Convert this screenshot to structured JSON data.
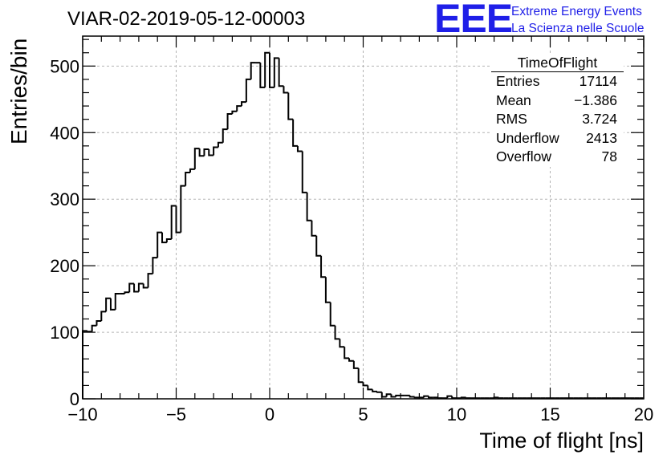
{
  "header": {
    "title": "VIAR-02-2019-05-12-00003",
    "logo": "EEE",
    "logo_line1": "Extreme Energy Events",
    "logo_line2": "La Scienza nelle Scuole"
  },
  "stats_box": {
    "title": "TimeOfFlight",
    "rows": [
      {
        "label": "Entries",
        "value": "17114"
      },
      {
        "label": "Mean",
        "value": "−1.386"
      },
      {
        "label": "RMS",
        "value": "3.724"
      },
      {
        "label": "Underflow",
        "value": "2413"
      },
      {
        "label": "Overflow",
        "value": "78"
      }
    ]
  },
  "colors": {
    "logo": "#1f1fe8",
    "line": "#000000",
    "grid": "#b3b3b3"
  },
  "chart_data": {
    "type": "histogram",
    "title": "VIAR-02-2019-05-12-00003",
    "xlabel": "Time of flight [ns]",
    "ylabel": "Entries/bin",
    "xlim": [
      -10,
      20
    ],
    "ylim": [
      0,
      545
    ],
    "grid": true,
    "bin_width": 0.25,
    "bin_start": -10,
    "xticks": [
      -10,
      -5,
      0,
      5,
      10,
      15,
      20
    ],
    "xtick_labels": [
      "−10",
      "−5",
      "0",
      "5",
      "10",
      "15",
      "20"
    ],
    "yticks": [
      0,
      100,
      200,
      300,
      400,
      500
    ],
    "ytick_labels": [
      "0",
      "100",
      "200",
      "300",
      "400",
      "500"
    ],
    "values": [
      102,
      101,
      110,
      117,
      131,
      151,
      134,
      158,
      158,
      160,
      173,
      161,
      173,
      167,
      188,
      212,
      250,
      235,
      240,
      290,
      250,
      320,
      340,
      345,
      376,
      365,
      375,
      366,
      378,
      385,
      405,
      428,
      432,
      440,
      446,
      480,
      505,
      505,
      468,
      520,
      468,
      512,
      470,
      460,
      420,
      380,
      372,
      310,
      268,
      245,
      215,
      183,
      145,
      110,
      90,
      78,
      61,
      57,
      46,
      25,
      20,
      14,
      11,
      10,
      3,
      7,
      3,
      5,
      5,
      5,
      3,
      2,
      2,
      4,
      2,
      2,
      1,
      1,
      4,
      1,
      1,
      2,
      1,
      1,
      1,
      1,
      1,
      1,
      2,
      1,
      1,
      1,
      1,
      1,
      1,
      1,
      1,
      1,
      1,
      1,
      1,
      1,
      1,
      1,
      1,
      1,
      1,
      1,
      1,
      1,
      1,
      1,
      1,
      1,
      1,
      1,
      1,
      1,
      1,
      1
    ]
  }
}
